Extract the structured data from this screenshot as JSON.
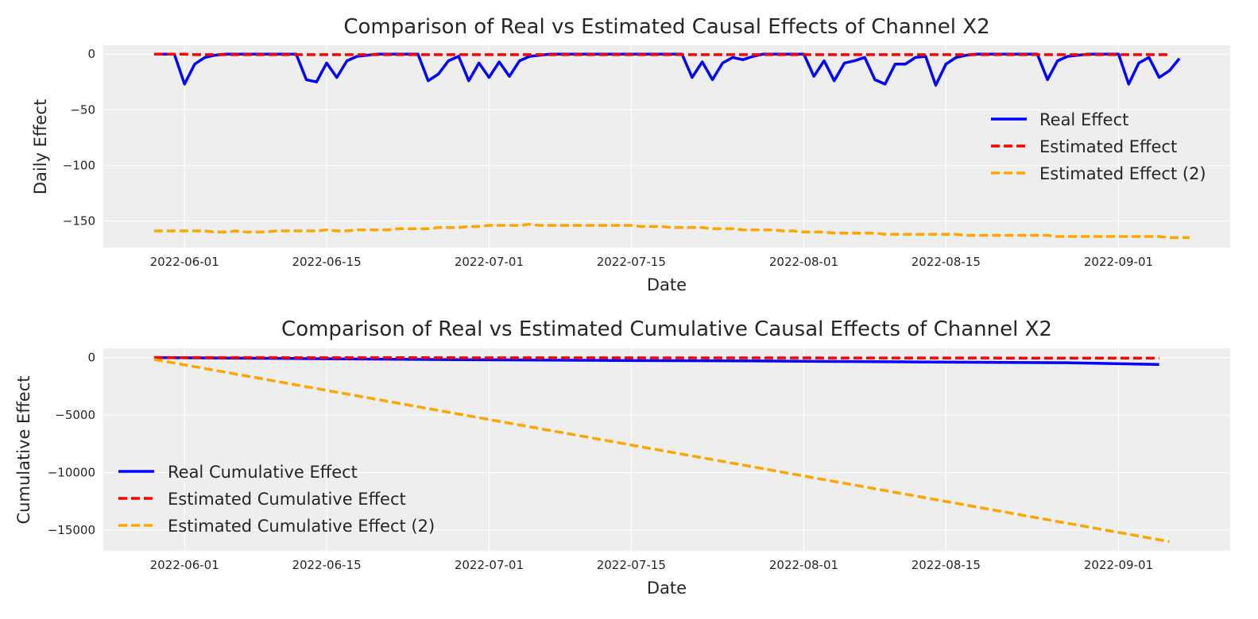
{
  "chart_data": [
    {
      "type": "line",
      "title": "Comparison of Real vs Estimated Causal Effects of Channel X2",
      "xlabel": "Date",
      "ylabel": "Daily Effect",
      "x_start": "2022-05-29",
      "xlim": [
        "2022-05-24",
        "2022-09-12"
      ],
      "ylim": [
        -174,
        8
      ],
      "xticks": [
        "2022-06-01",
        "2022-06-15",
        "2022-07-01",
        "2022-07-15",
        "2022-08-01",
        "2022-08-15",
        "2022-09-01"
      ],
      "yticks": [
        0,
        -50,
        -100,
        -150
      ],
      "grid": true,
      "legend_position": "center-right",
      "series": [
        {
          "name": "Real Effect",
          "color": "#0000ff",
          "style": "solid",
          "values": [
            0,
            0,
            0,
            -27,
            -9,
            -3,
            -1,
            0,
            0,
            0,
            0,
            0,
            0,
            0,
            0,
            -23,
            -25,
            -8,
            -21,
            -6,
            -2,
            -1,
            0,
            0,
            0,
            0,
            0,
            -24,
            -18,
            -6,
            -2,
            -24,
            -8,
            -21,
            -7,
            -20,
            -6,
            -2,
            -1,
            0,
            0,
            0,
            0,
            0,
            0,
            0,
            0,
            0,
            0,
            0,
            0,
            0,
            0,
            -21,
            -7,
            -23,
            -8,
            -3,
            -5,
            -2,
            0,
            0,
            0,
            0,
            0,
            -20,
            -6,
            -24,
            -8,
            -6,
            -3,
            -23,
            -27,
            -9,
            -9,
            -3,
            -2,
            -28,
            -9,
            -3,
            -1,
            0,
            0,
            0,
            0,
            0,
            0,
            0,
            -23,
            -6,
            -2,
            -1,
            0,
            0,
            0,
            0,
            -27,
            -8,
            -3,
            -21,
            -15,
            -4
          ]
        },
        {
          "name": "Estimated Effect",
          "color": "#ff0000",
          "style": "dashed",
          "values": [
            0,
            0,
            0,
            0,
            -0.5,
            -0.5,
            -0.5,
            -0.5,
            -0.5,
            -0.5,
            -0.5,
            -0.5,
            -0.5,
            -0.5,
            -0.5,
            -0.5,
            -0.5,
            -0.5,
            -0.5,
            -0.5,
            -0.5,
            -0.5,
            -0.5,
            -0.5,
            -0.5,
            -0.5,
            -0.5,
            -0.5,
            -0.5,
            -0.5,
            -0.5,
            -0.5,
            -0.5,
            -0.5,
            -0.5,
            -0.5,
            -0.5,
            -0.5,
            -0.5,
            -0.5,
            -0.5,
            -0.5,
            -0.5,
            -0.5,
            -0.5,
            -0.5,
            -0.5,
            -0.5,
            -0.5,
            -0.5,
            -0.5,
            -0.5,
            -0.5,
            -0.5,
            -0.5,
            -0.5,
            -0.5,
            -0.5,
            -0.5,
            -0.5,
            -0.5,
            -0.5,
            -0.5,
            -0.5,
            -0.5,
            -0.5,
            -0.5,
            -0.5,
            -0.5,
            -0.5,
            -0.5,
            -0.5,
            -0.5,
            -0.5,
            -0.5,
            -0.5,
            -0.5,
            -0.5,
            -0.5,
            -0.5,
            -0.5,
            -0.5,
            -0.5,
            -0.5,
            -0.5,
            -0.5,
            -0.5,
            -0.5,
            -0.5,
            -0.5,
            -0.5,
            -0.5,
            -0.5,
            -0.5,
            -0.5,
            -0.5,
            -0.5,
            -0.5,
            -0.5,
            -0.5,
            -0.5
          ]
        },
        {
          "name": "Estimated Effect (2)",
          "color": "#ffa500",
          "style": "dashed",
          "values": [
            -159,
            -159,
            -159,
            -159,
            -159,
            -159,
            -160,
            -160,
            -159,
            -160,
            -160,
            -160,
            -159,
            -159,
            -159,
            -159,
            -159,
            -158,
            -159,
            -159,
            -158,
            -158,
            -158,
            -158,
            -157,
            -157,
            -157,
            -157,
            -156,
            -156,
            -156,
            -155,
            -155,
            -154,
            -154,
            -154,
            -154,
            -153,
            -154,
            -154,
            -154,
            -154,
            -154,
            -154,
            -154,
            -154,
            -154,
            -154,
            -155,
            -155,
            -155,
            -156,
            -156,
            -156,
            -156,
            -157,
            -157,
            -157,
            -158,
            -158,
            -158,
            -158,
            -159,
            -159,
            -160,
            -160,
            -160,
            -161,
            -161,
            -161,
            -161,
            -161,
            -162,
            -162,
            -162,
            -162,
            -162,
            -162,
            -162,
            -162,
            -163,
            -163,
            -163,
            -163,
            -163,
            -163,
            -163,
            -163,
            -163,
            -164,
            -164,
            -164,
            -164,
            -164,
            -164,
            -164,
            -164,
            -164,
            -164,
            -164,
            -165,
            -165,
            -165
          ]
        }
      ]
    },
    {
      "type": "line",
      "title": "Comparison of Real vs Estimated Cumulative Causal Effects of Channel X2",
      "xlabel": "Date",
      "ylabel": "Cumulative Effect",
      "x_start": "2022-05-29",
      "xlim": [
        "2022-05-24",
        "2022-09-12"
      ],
      "ylim": [
        -16800,
        800
      ],
      "xticks": [
        "2022-06-01",
        "2022-06-15",
        "2022-07-01",
        "2022-07-15",
        "2022-08-01",
        "2022-08-15",
        "2022-09-01"
      ],
      "yticks": [
        0,
        -5000,
        -10000,
        -15000
      ],
      "grid": true,
      "legend_position": "lower-left",
      "series": [
        {
          "name": "Real Cumulative Effect",
          "color": "#0000ff",
          "style": "solid",
          "points": [
            [
              0,
              0
            ],
            [
              14,
              -80
            ],
            [
              30,
              -180
            ],
            [
              45,
              -250
            ],
            [
              60,
              -300
            ],
            [
              75,
              -380
            ],
            [
              90,
              -450
            ],
            [
              99,
              -600
            ]
          ]
        },
        {
          "name": "Estimated Cumulative Effect",
          "color": "#ff0000",
          "style": "dashed",
          "points": [
            [
              0,
              0
            ],
            [
              99,
              -50
            ]
          ]
        },
        {
          "name": "Estimated Cumulative Effect (2)",
          "color": "#ffa500",
          "style": "dashed",
          "points": [
            [
              0,
              -159
            ],
            [
              100,
              -16000
            ]
          ]
        }
      ]
    }
  ]
}
